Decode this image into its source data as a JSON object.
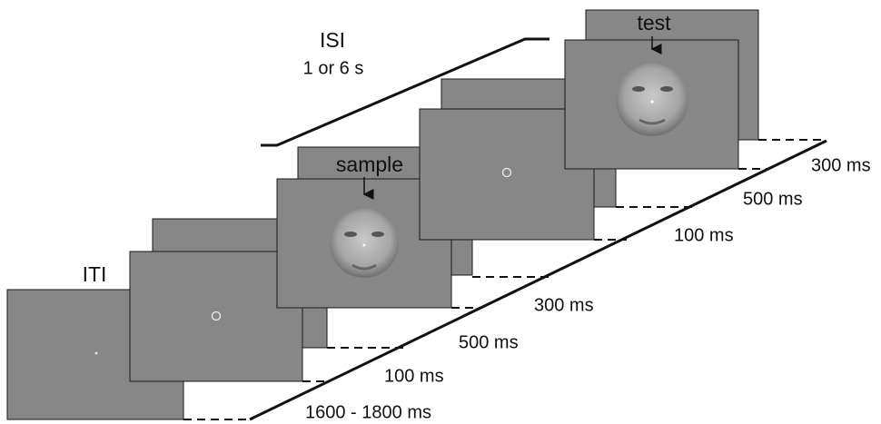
{
  "labels": {
    "iti": "ITI",
    "sample": "sample",
    "isi": "ISI",
    "isi_duration": "1 or 6 s",
    "test": "test"
  },
  "durations": [
    "1600 - 1800 ms",
    "100 ms",
    "500 ms",
    "300 ms",
    "100 ms",
    "500 ms",
    "300 ms"
  ]
}
